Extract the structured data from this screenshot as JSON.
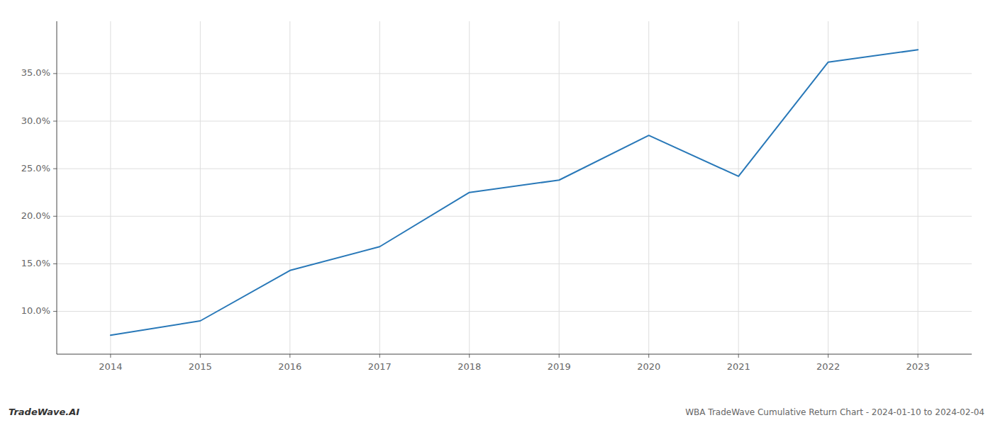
{
  "chart_data": {
    "type": "line",
    "title": "WBA TradeWave Cumulative Return Chart - 2024-01-10 to 2024-02-04",
    "annotations": [
      "TradeWave.AI"
    ],
    "x": [
      2014,
      2015,
      2016,
      2017,
      2018,
      2019,
      2020,
      2021,
      2022,
      2023
    ],
    "values": [
      7.5,
      9.0,
      14.3,
      16.8,
      22.5,
      23.8,
      28.5,
      24.2,
      36.2,
      37.5
    ],
    "color": "#2878b8",
    "xlim": [
      2013.4,
      2023.6
    ],
    "xticks": [
      2014,
      2015,
      2016,
      2017,
      2018,
      2019,
      2020,
      2021,
      2022,
      2023
    ],
    "ylim": [
      5.5,
      40.5
    ],
    "yticks": [
      {
        "value": 10.0,
        "label": "10.0%"
      },
      {
        "value": 15.0,
        "label": "15.0%"
      },
      {
        "value": 20.0,
        "label": "20.0%"
      },
      {
        "value": 25.0,
        "label": "25.0%"
      },
      {
        "value": 30.0,
        "label": "30.0%"
      },
      {
        "value": 35.0,
        "label": "35.0%"
      }
    ],
    "grid": true
  }
}
